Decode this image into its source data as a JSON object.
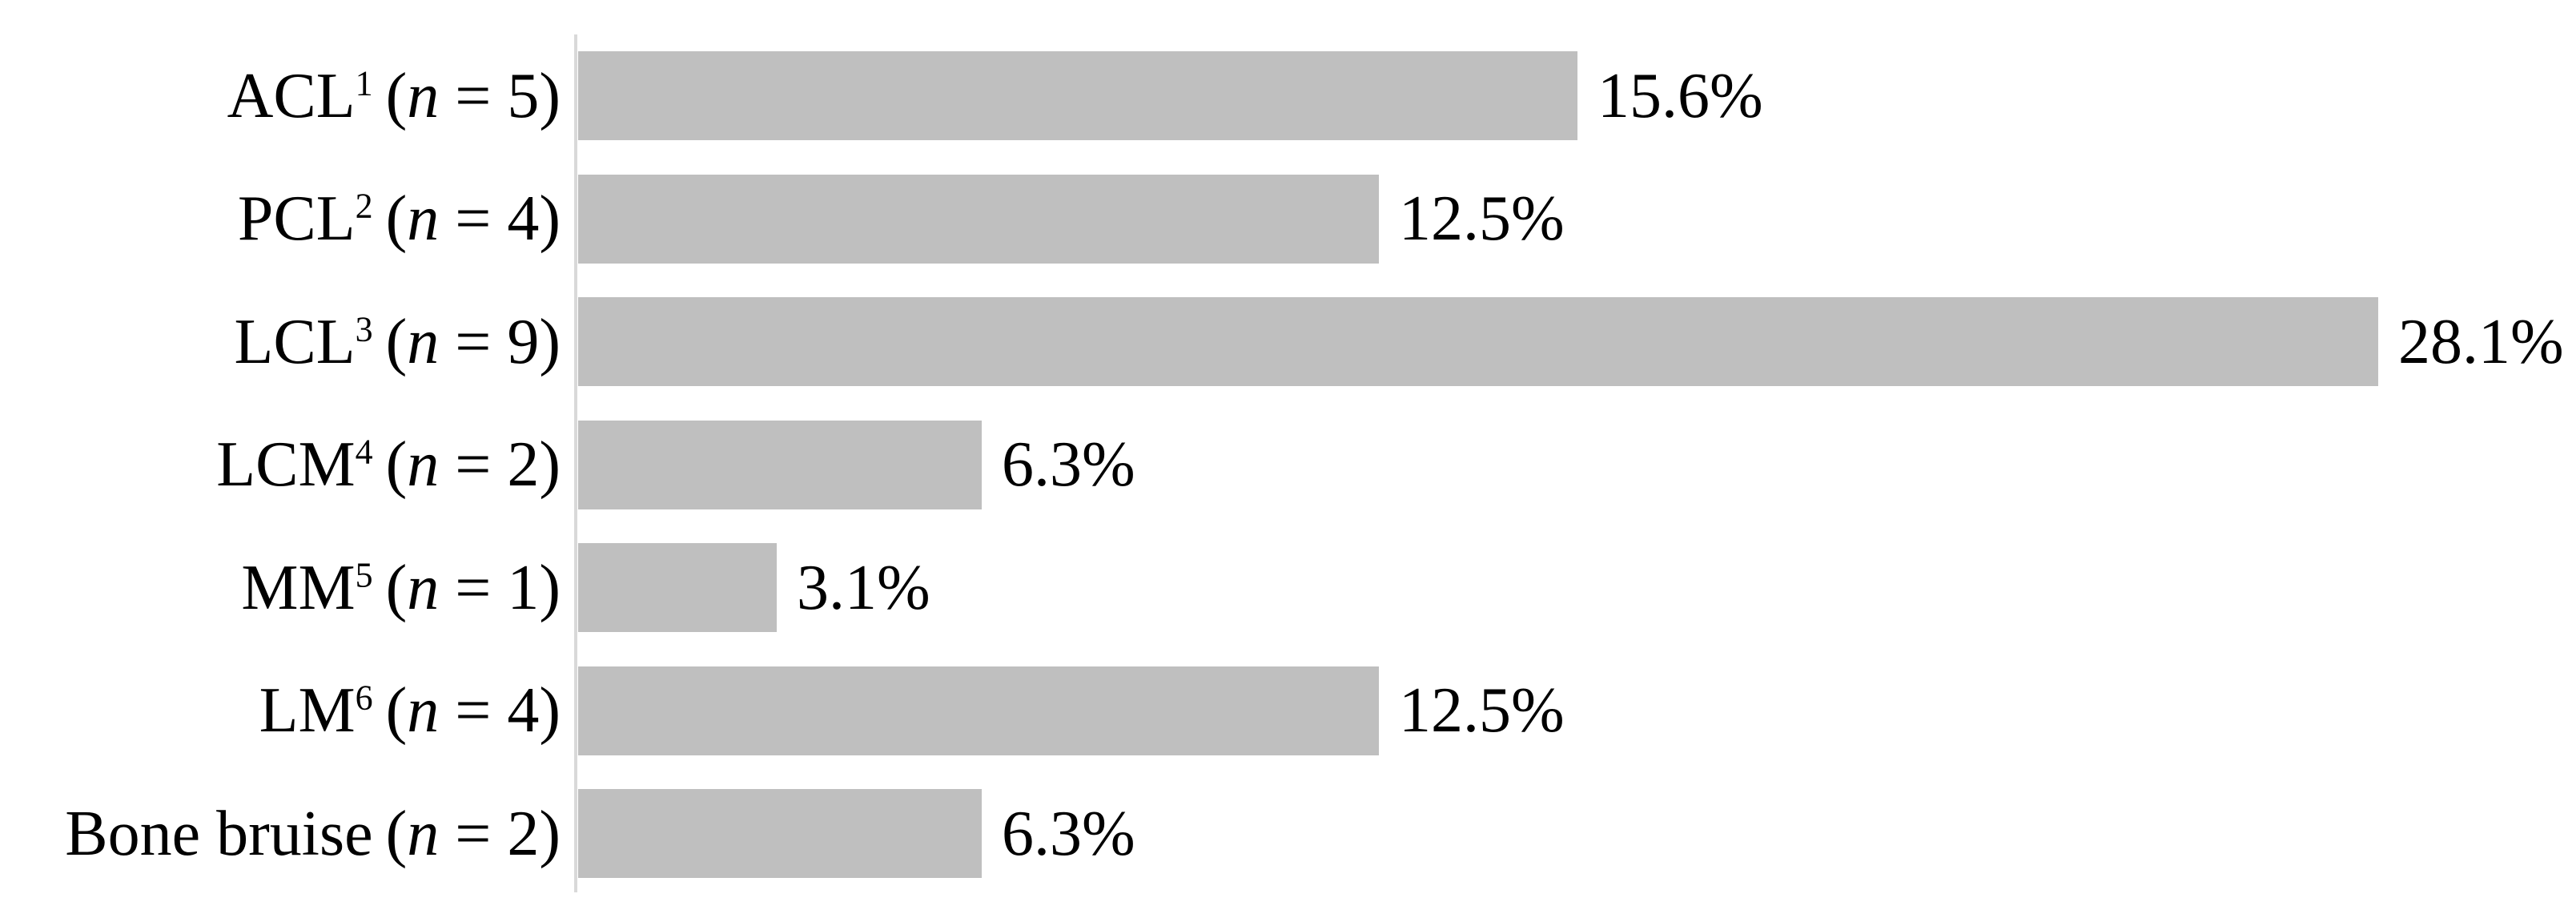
{
  "chart_data": {
    "type": "bar",
    "orientation": "horizontal",
    "title": "",
    "xlabel": "",
    "ylabel": "",
    "grid": false,
    "legend": false,
    "xlim": [
      0,
      30
    ],
    "categories": [
      "ACL¹ (n = 5)",
      "PCL² (n = 4)",
      "LCL³ (n = 9)",
      "LCM⁴ (n = 2)",
      "MM⁵ (n = 1)",
      "LM⁶ (n = 4)",
      "Bone bruise (n = 2)"
    ],
    "category_parts": [
      {
        "name": "ACL",
        "sup": "1",
        "n_prefix": "(",
        "n_var": "n",
        "n_suffix": " = 5)"
      },
      {
        "name": "PCL",
        "sup": "2",
        "n_prefix": "(",
        "n_var": "n",
        "n_suffix": " = 4)"
      },
      {
        "name": "LCL",
        "sup": "3",
        "n_prefix": "(",
        "n_var": "n",
        "n_suffix": " = 9)"
      },
      {
        "name": "LCM",
        "sup": "4",
        "n_prefix": "(",
        "n_var": "n",
        "n_suffix": " = 2)"
      },
      {
        "name": "MM",
        "sup": "5",
        "n_prefix": "(",
        "n_var": "n",
        "n_suffix": " = 1)"
      },
      {
        "name": "LM",
        "sup": "6",
        "n_prefix": "(",
        "n_var": "n",
        "n_suffix": " = 4)"
      },
      {
        "name": "Bone bruise",
        "sup": "",
        "n_prefix": "(",
        "n_var": "n",
        "n_suffix": " = 2)"
      }
    ],
    "values": [
      15.6,
      12.5,
      28.1,
      6.3,
      3.1,
      12.5,
      6.3
    ],
    "value_labels": [
      "15.6%",
      "12.5%",
      "28.1%",
      "6.3%",
      "3.1%",
      "12.5%",
      "6.3%"
    ],
    "colors": {
      "bar": "#bfbfbf",
      "axis": "#d9d9d9",
      "text": "#000000",
      "background": "#ffffff"
    }
  }
}
